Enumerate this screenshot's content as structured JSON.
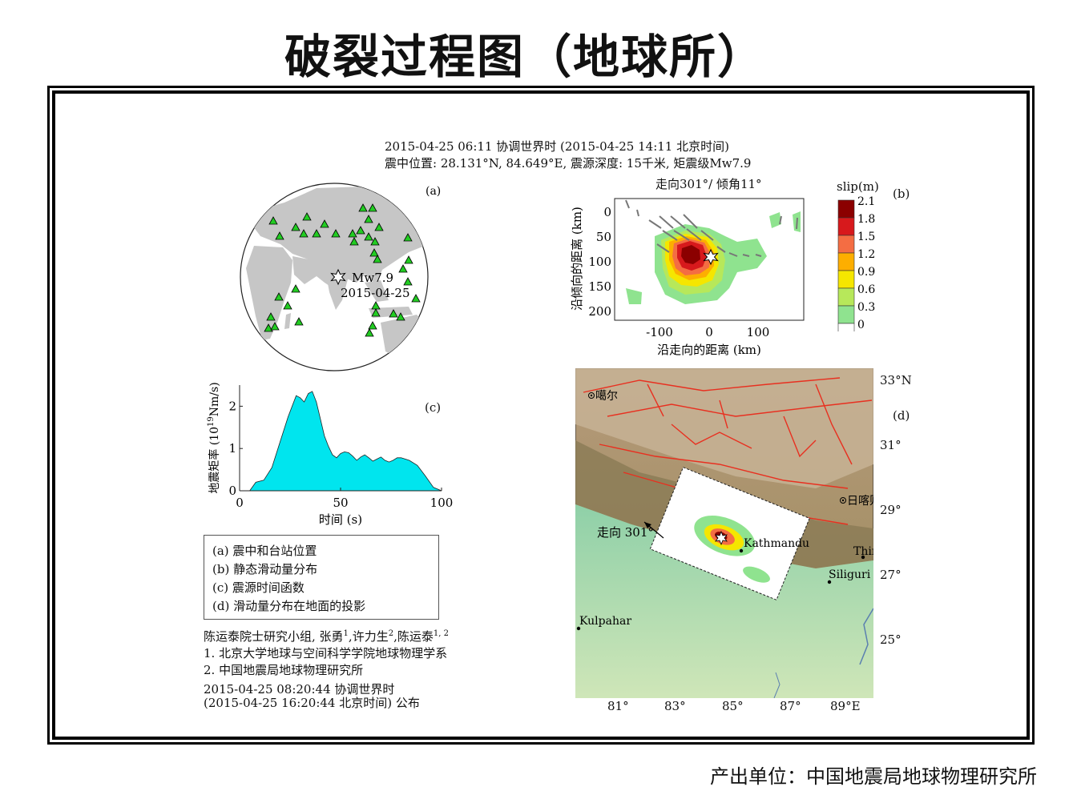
{
  "title": "破裂过程图（地球所）",
  "header": {
    "line1": "2015-04-25 06:11 协调世界时 (2015-04-25 14:11 北京时间)",
    "line2": "震中位置: 28.131°N, 84.649°E, 震源深度: 15千米, 矩震级Mw7.9"
  },
  "panel_a": {
    "label": "(a)",
    "event_mag": "Mw7.9",
    "event_date": "2015-04-25"
  },
  "panel_b": {
    "label": "(b)",
    "title": "走向301°/ 倾角11°",
    "xlabel": "沿走向的距离 (km)",
    "ylabel": "沿倾向的距离 (km)",
    "xticks": [
      "-100",
      "0",
      "100"
    ],
    "yticks": [
      "0",
      "50",
      "100",
      "150",
      "200"
    ],
    "colorbar_title": "slip(m)",
    "colorbar_ticks": [
      "2.1",
      "1.8",
      "1.5",
      "1.2",
      "0.9",
      "0.6",
      "0.3",
      "0"
    ],
    "colorbar_colors": [
      "#8b0000",
      "#d7191c",
      "#f46d43",
      "#fdae00",
      "#f5e600",
      "#b7e85a",
      "#8fe38f",
      "#ffffff"
    ]
  },
  "panel_c": {
    "label": "(c)",
    "ylabel_main": "地震矩率 (10",
    "ylabel_sup": "19",
    "ylabel_end": "Nm/s)",
    "xlabel": "时间 (s)",
    "xticks": [
      "0",
      "50",
      "100"
    ],
    "yticks": [
      "0",
      "1",
      "2"
    ],
    "fill_color": "#00e5ee"
  },
  "panel_d": {
    "label": "(d)",
    "lat_labels": [
      "33°N",
      "31°",
      "29°",
      "27°",
      "25°"
    ],
    "lon_labels": [
      "81°",
      "83°",
      "85°",
      "87°",
      "89°E"
    ],
    "cities": [
      "噶尔",
      "日喀则",
      "Kathmandu",
      "Thimphu",
      "Siliguri",
      "Kulpahar"
    ],
    "strike_label": "走向 301°"
  },
  "legend": {
    "items": [
      "(a) 震中和台站位置",
      "(b) 静态滑动量分布",
      "(c) 震源时间函数",
      "(d) 滑动量分布在地面的投影"
    ]
  },
  "credits": {
    "team_prefix": "陈运泰院士研究小组, 张勇",
    "sup1": "1",
    "team_mid": ",许力生",
    "sup2": "2",
    "team_mid2": ",陈运泰",
    "sup3": "1, 2",
    "aff1": "1. 北京大学地球与空间科学学院地球物理学系",
    "aff2": "2. 中国地震局地球物理研究所",
    "pub1": "2015-04-25 08:20:44 协调世界时",
    "pub2": "(2015-04-25 16:20:44 北京时间) 公布"
  },
  "chart_data": {
    "type": "area",
    "title": "",
    "xlabel": "时间 (s)",
    "ylabel": "地震矩率 (10^19 Nm/s)",
    "xlim": [
      0,
      100
    ],
    "ylim": [
      0,
      2.5
    ],
    "x": [
      0,
      5,
      8,
      12,
      16,
      20,
      24,
      28,
      30,
      32,
      34,
      36,
      38,
      40,
      42,
      44,
      46,
      48,
      50,
      52,
      54,
      56,
      58,
      60,
      62,
      64,
      66,
      68,
      70,
      72,
      74,
      76,
      78,
      80,
      84,
      88,
      92,
      96,
      100
    ],
    "series": [
      {
        "values": [
          0,
          0,
          0.2,
          0.25,
          0.55,
          1.15,
          1.75,
          2.25,
          2.2,
          2.1,
          2.3,
          2.35,
          2.1,
          1.7,
          1.3,
          1.05,
          0.85,
          0.78,
          0.88,
          0.92,
          0.9,
          0.82,
          0.72,
          0.8,
          0.85,
          0.78,
          0.7,
          0.75,
          0.8,
          0.72,
          0.68,
          0.72,
          0.78,
          0.78,
          0.72,
          0.6,
          0.35,
          0.08,
          0
        ]
      }
    ]
  }
}
